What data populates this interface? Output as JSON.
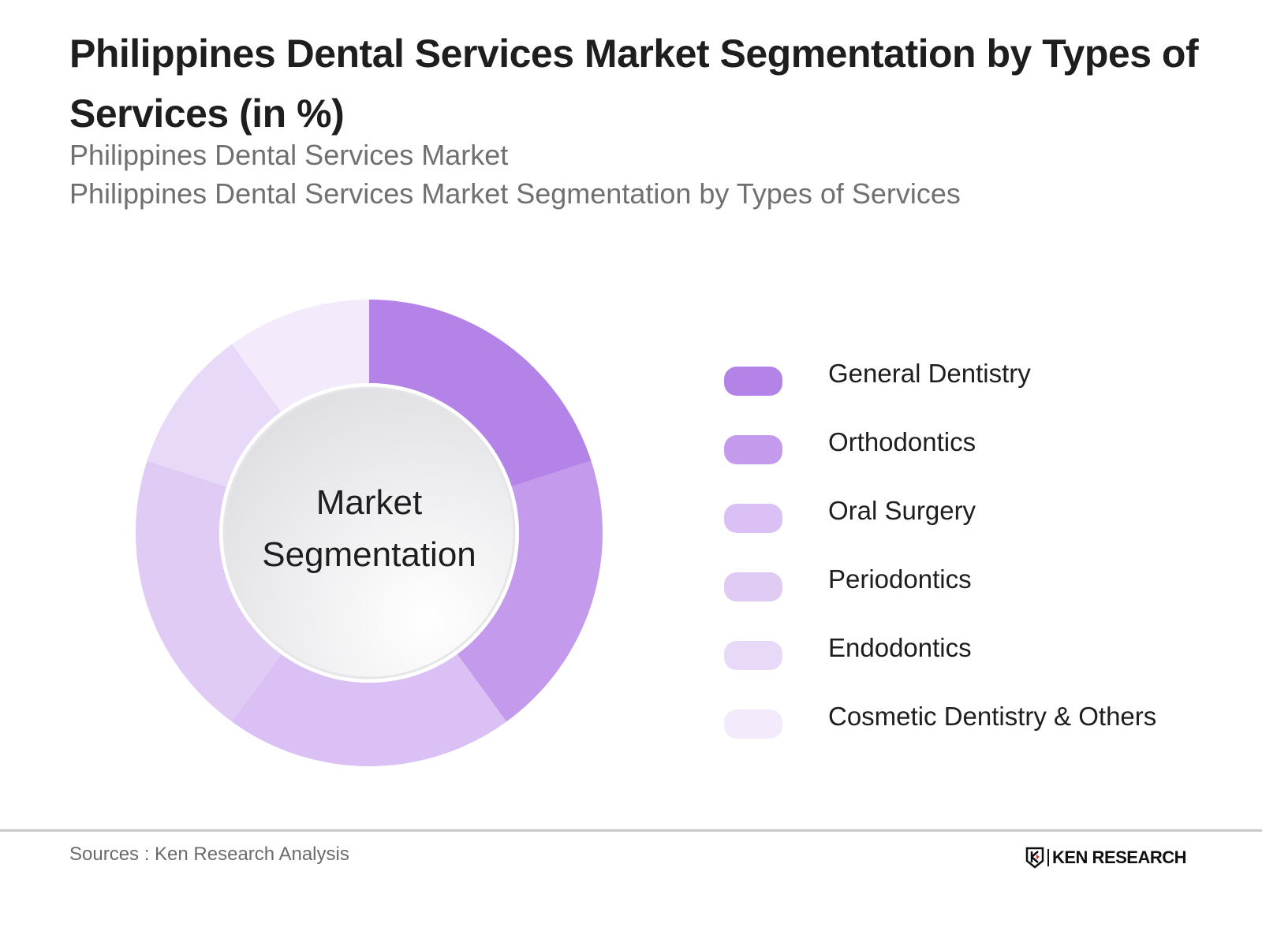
{
  "header": {
    "title": "Philippines Dental Services Market Segmentation by Types of Services (in %)",
    "subtitle_1": "Philippines Dental Services Market",
    "subtitle_2": "Philippines Dental Services Market Segmentation by Types of Services"
  },
  "center_label": {
    "line1": "Market",
    "line2": "Segmentation"
  },
  "legend": [
    {
      "label": "General Dentistry",
      "color": "#b383e8"
    },
    {
      "label": "Orthodontics",
      "color": "#c49bec"
    },
    {
      "label": "Oral Surgery",
      "color": "#dbc0f5"
    },
    {
      "label": "Periodontics",
      "color": "#e0cbf5"
    },
    {
      "label": "Endodontics",
      "color": "#e9d9f9"
    },
    {
      "label": "Cosmetic Dentistry & Others",
      "color": "#f3ebfc"
    }
  ],
  "footer": {
    "source": "Sources : Ken Research Analysis",
    "logo_text": "KEN RESEARCH"
  },
  "chart_data": {
    "type": "pie",
    "variant": "donut",
    "title": "Philippines Dental Services Market Segmentation by Types of Services (in %)",
    "subtitle": [
      "Philippines Dental Services Market",
      "Philippines Dental Services Market Segmentation by Types of Services"
    ],
    "categories": [
      "General Dentistry",
      "Orthodontics",
      "Oral Surgery",
      "Periodontics",
      "Endodontics",
      "Cosmetic Dentistry & Others"
    ],
    "values": [
      20,
      20,
      20,
      20,
      10,
      10
    ],
    "colors": [
      "#b383e8",
      "#c49bec",
      "#dbc0f5",
      "#e0cbf5",
      "#e9d9f9",
      "#f3ebfc"
    ],
    "center_text": "Market Segmentation",
    "legend_position": "right",
    "start_angle": "12 o'clock, clockwise",
    "source": "Sources : Ken Research Analysis"
  }
}
